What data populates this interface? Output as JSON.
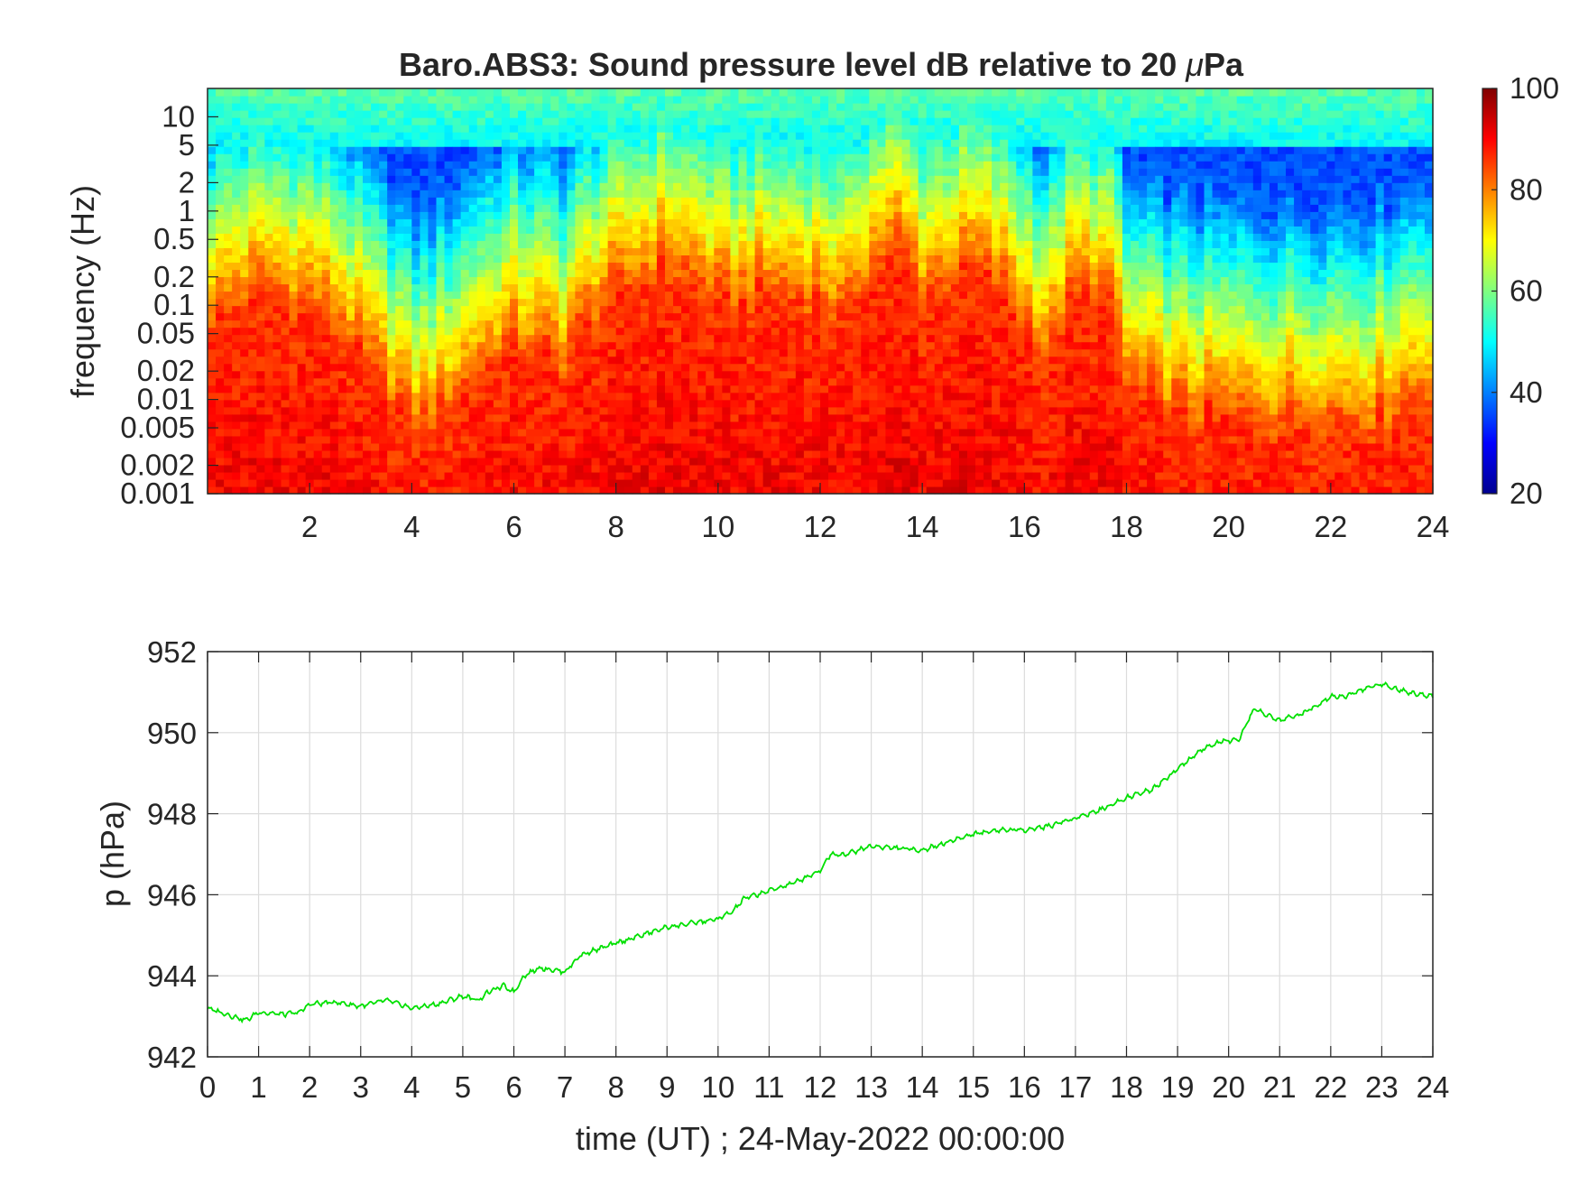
{
  "spectrogram": {
    "type": "heatmap",
    "title": "Baro.ABS3: Sound pressure level dB relative to 20 μPa",
    "title_prefix": "Baro.ABS3: Sound pressure level dB relative to 20 ",
    "title_mu": "μ",
    "title_suffix": "Pa",
    "ylabel": "frequency (Hz)",
    "xlim": [
      0,
      24
    ],
    "ylim_hz": [
      0.001,
      20
    ],
    "y_scale": "log",
    "x_ticks": [
      2,
      4,
      6,
      8,
      10,
      12,
      14,
      16,
      18,
      20,
      22,
      24
    ],
    "x_tick_labels": [
      "2",
      "4",
      "6",
      "8",
      "10",
      "12",
      "14",
      "16",
      "18",
      "20",
      "22",
      "24"
    ],
    "y_ticks": [
      0.001,
      0.002,
      0.005,
      0.01,
      0.02,
      0.05,
      0.1,
      0.2,
      0.5,
      1,
      2,
      5,
      10
    ],
    "y_tick_labels": [
      "0.001",
      "0.002",
      "0.005",
      "0.01",
      "0.02",
      "0.05",
      "0.1",
      "0.2",
      "0.5",
      "1",
      "2",
      "5",
      "10"
    ],
    "colormap": "jet",
    "clim": [
      20,
      100
    ],
    "colorbar_ticks": [
      20,
      40,
      60,
      80,
      100
    ],
    "colorbar_tick_labels": [
      "20",
      "40",
      "60",
      "80",
      "100"
    ],
    "activity_profile": {
      "hours": [
        0,
        1,
        2,
        3,
        3.5,
        4,
        4.5,
        5,
        6,
        7,
        8,
        9,
        10,
        11,
        12,
        12.5,
        13,
        13.5,
        14,
        15,
        16,
        16.5,
        17,
        17.5,
        18,
        19,
        20,
        21,
        22,
        23,
        24
      ],
      "upper_freq_of_high_levels_hz": [
        0.05,
        0.1,
        0.08,
        0.02,
        0.01,
        0.004,
        0.005,
        0.01,
        0.03,
        0.02,
        0.1,
        0.2,
        0.08,
        0.1,
        0.1,
        0.05,
        0.2,
        0.3,
        0.1,
        0.2,
        0.05,
        0.02,
        0.1,
        0.1,
        0.01,
        0.006,
        0.005,
        0.005,
        0.005,
        0.005,
        0.01
      ]
    }
  },
  "pressure": {
    "type": "line",
    "ylabel": "p (hPa)",
    "xlabel": "time (UT) ; 24-May-2022 00:00:00",
    "xlim": [
      0,
      24
    ],
    "ylim": [
      942,
      952
    ],
    "x_ticks": [
      0,
      1,
      2,
      3,
      4,
      5,
      6,
      7,
      8,
      9,
      10,
      11,
      12,
      13,
      14,
      15,
      16,
      17,
      18,
      19,
      20,
      21,
      22,
      23,
      24
    ],
    "x_tick_labels": [
      "0",
      "1",
      "2",
      "3",
      "4",
      "5",
      "6",
      "7",
      "8",
      "9",
      "10",
      "11",
      "12",
      "13",
      "14",
      "15",
      "16",
      "17",
      "18",
      "19",
      "20",
      "21",
      "22",
      "23",
      "24"
    ],
    "y_ticks": [
      942,
      944,
      946,
      948,
      950,
      952
    ],
    "y_tick_labels": [
      "942",
      "944",
      "946",
      "948",
      "950",
      "952"
    ],
    "grid": true,
    "line_color": "#00e000",
    "x": [
      0,
      0.5,
      0.75,
      1,
      1.5,
      1.8,
      2,
      2.5,
      3,
      3.5,
      4,
      4.5,
      5,
      5.3,
      5.5,
      5.8,
      6,
      6.2,
      6.5,
      7,
      7.3,
      7.5,
      8,
      8.5,
      9,
      9.5,
      10,
      10.3,
      10.5,
      11,
      11.5,
      12,
      12.2,
      12.5,
      13,
      13.5,
      14,
      14.5,
      15,
      15.5,
      16,
      16.5,
      17,
      17.5,
      18,
      18.5,
      19,
      19.5,
      19.9,
      20.2,
      20.5,
      20.8,
      21,
      21.5,
      22,
      22.3,
      22.7,
      23,
      23.5,
      24
    ],
    "y": [
      943.2,
      943.0,
      942.9,
      943.1,
      943.05,
      943.1,
      943.3,
      943.35,
      943.25,
      943.4,
      943.2,
      943.3,
      943.5,
      943.4,
      943.6,
      943.75,
      943.6,
      944.0,
      944.2,
      944.1,
      944.5,
      944.6,
      944.8,
      945.0,
      945.2,
      945.3,
      945.4,
      945.6,
      945.9,
      946.1,
      946.3,
      946.6,
      947.0,
      947.0,
      947.2,
      947.15,
      947.1,
      947.3,
      947.5,
      947.6,
      947.6,
      947.7,
      947.9,
      948.1,
      948.4,
      948.6,
      949.1,
      949.6,
      949.8,
      949.8,
      950.6,
      950.4,
      950.3,
      950.5,
      950.9,
      950.9,
      951.1,
      951.2,
      951.0,
      950.9
    ]
  }
}
